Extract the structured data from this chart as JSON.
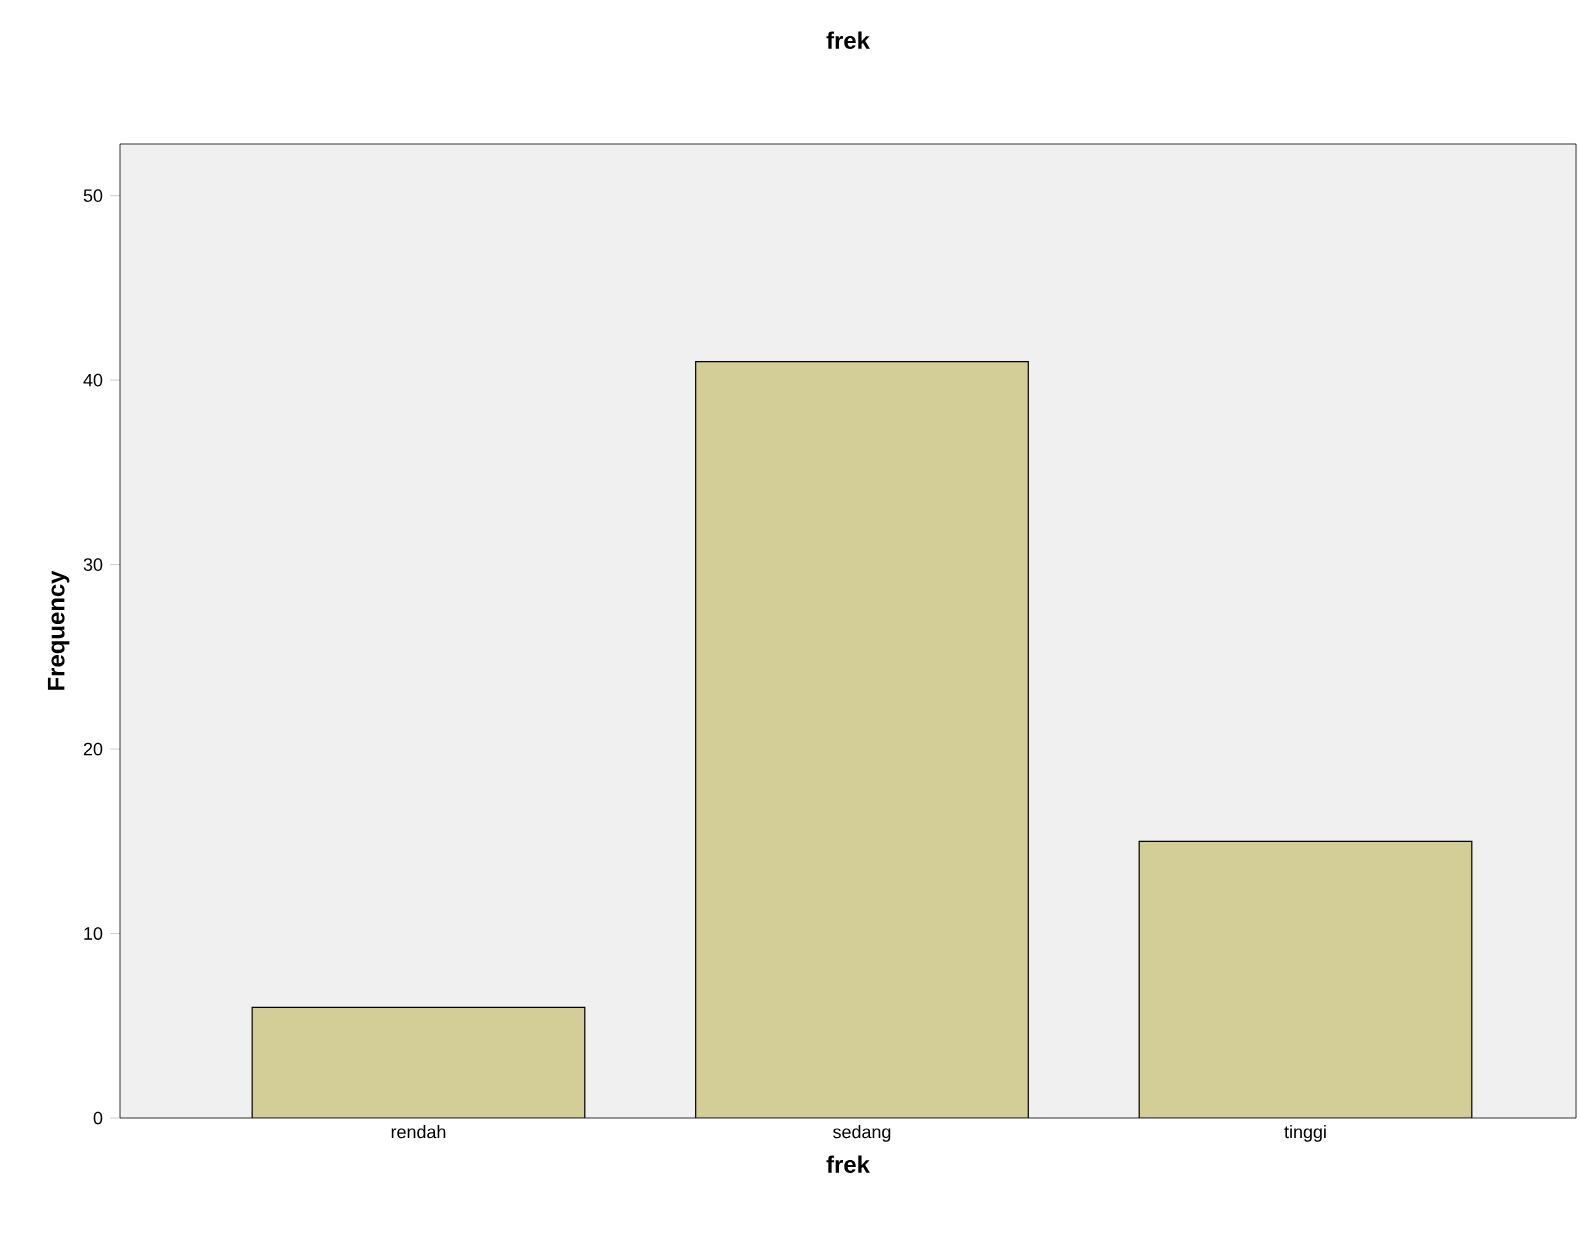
{
  "chart_data": {
    "type": "bar",
    "title": "frek",
    "xlabel": "frek",
    "ylabel": "Frequency",
    "categories": [
      "rendah",
      "sedang",
      "tinggi"
    ],
    "values": [
      6,
      41,
      15
    ],
    "color": "#d3ce97",
    "ylim": [
      0,
      52.8
    ],
    "yticks": [
      0,
      10,
      20,
      30,
      40,
      50
    ],
    "grid": false
  }
}
